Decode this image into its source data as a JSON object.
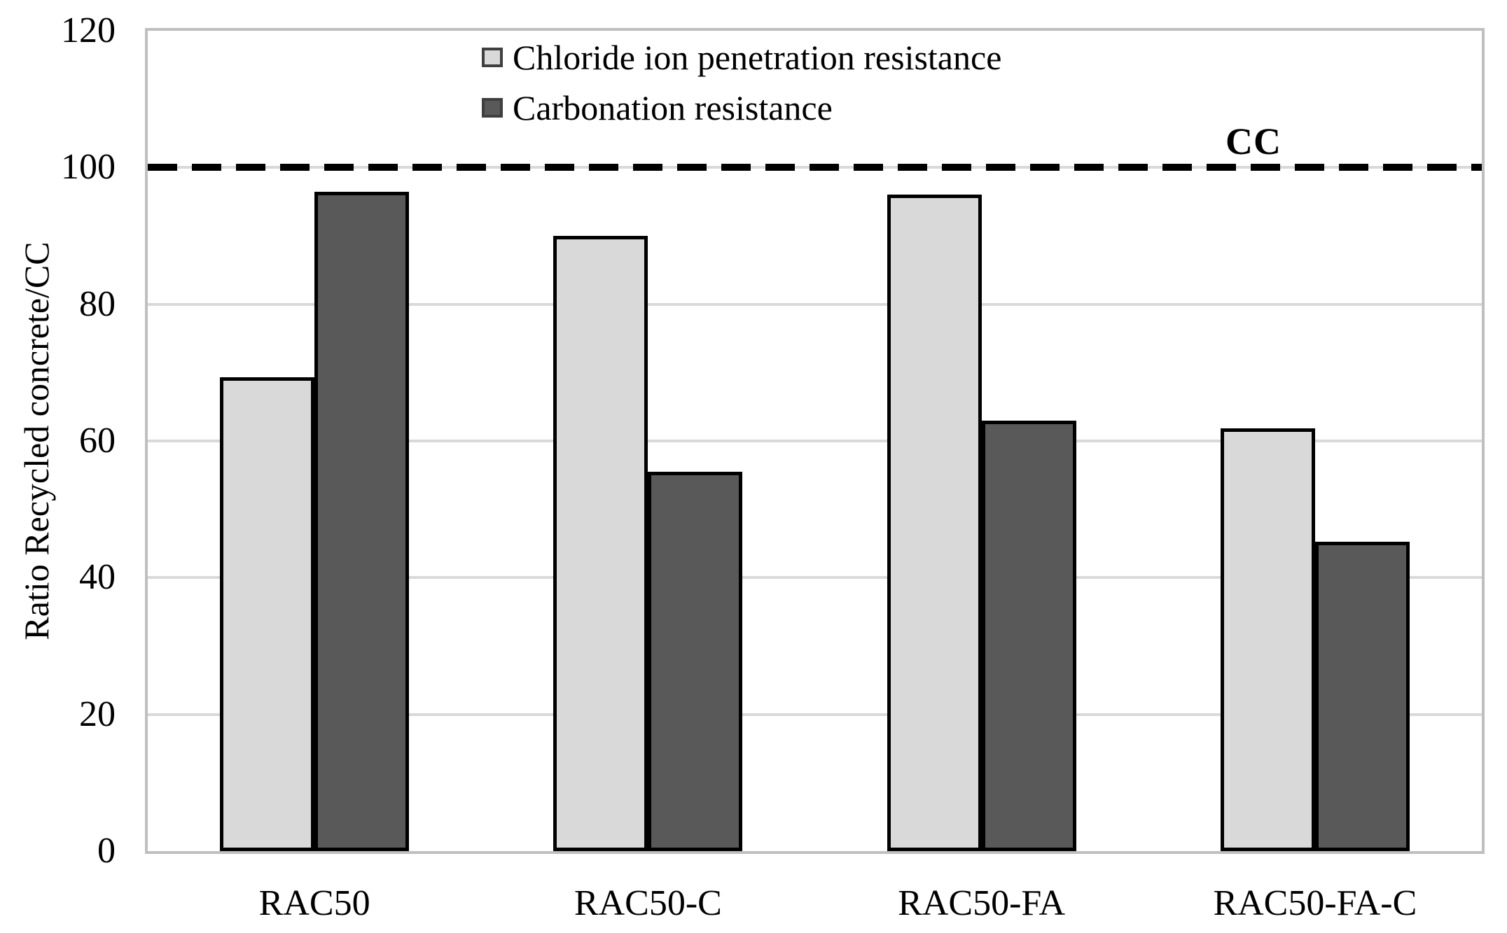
{
  "chart_data": {
    "type": "bar",
    "title": "",
    "ylabel": "Ratio Recycled concrete/CC",
    "xlabel": "",
    "ylim": [
      0,
      120
    ],
    "yticks": [
      0,
      20,
      40,
      60,
      80,
      100,
      120
    ],
    "grid": "horizontal",
    "legend_position": "top-center-inside",
    "categories": [
      "RAC50",
      "RAC50-C",
      "RAC50-FA",
      "RAC50-FA-C"
    ],
    "series": [
      {
        "name": "Chloride ion penetration resistance",
        "key": "chloride-ion-penetration-resistance",
        "fill": "#d9d9d9",
        "values": [
          69.3,
          90.0,
          96.0,
          61.8
        ]
      },
      {
        "name": "Carbonation resistance",
        "key": "carbonation-resistance",
        "fill": "#595959",
        "values": [
          96.5,
          55.5,
          63.0,
          45.3
        ]
      }
    ],
    "refline": {
      "value": 100,
      "label": "CC",
      "style": "dashed",
      "color": "#000000"
    }
  },
  "colors": {
    "background": "#ffffff",
    "gridline": "#d9d9d9",
    "plot_border": "#bfbfbf",
    "bar_border": "#000000"
  }
}
